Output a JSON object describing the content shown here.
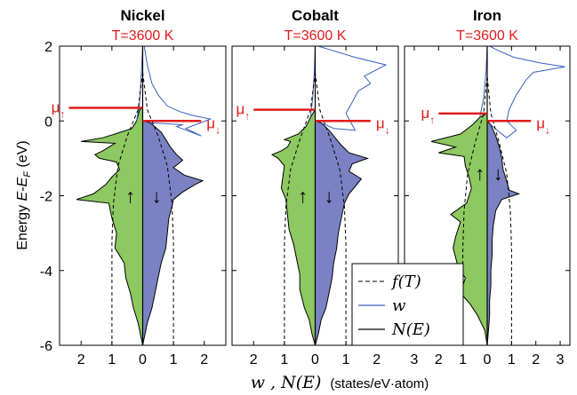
{
  "figure": {
    "ylabel_prefix": "Energy ",
    "ylabel_E": "E",
    "ylabel_dash": "-",
    "ylabel_EF": "E",
    "ylabel_F": "F",
    "ylabel_unit": " (eV)",
    "xlabel_math": "w , N(E)",
    "xlabel_unit": "(states/eV·atom)",
    "mu_symbol": "μ",
    "up_arrow": "↑",
    "down_arrow": "↓"
  },
  "legend": {
    "entries": [
      {
        "label": "f(T)",
        "style": "dashed",
        "color": "#000000"
      },
      {
        "label": "w",
        "style": "solid",
        "color": "#3b5fc0"
      },
      {
        "label": "N(E)",
        "style": "solid",
        "color": "#000000"
      }
    ]
  },
  "colors": {
    "spin_up_fill": "#8dc860",
    "spin_down_fill": "#7a82c4",
    "mu_line": "#e01b1b",
    "w_line": "#3b5fc0",
    "text_red": "#e01b1b"
  },
  "chart_data": [
    {
      "type": "area",
      "title": "Nickel",
      "subtitle": "T=3600 K",
      "ylim": [
        -6,
        2
      ],
      "yticks": [
        -6,
        -4,
        -2,
        0,
        2
      ],
      "xlim": [
        -2.7,
        2.7
      ],
      "xticks": [
        -2,
        -1,
        0,
        1,
        2
      ],
      "xtick_labels": [
        "2",
        "1",
        "0",
        "1",
        "2"
      ],
      "mu_up": 0.35,
      "mu_down": 0.0,
      "mu_up_range": [
        -2.4,
        0.0
      ],
      "mu_down_range": [
        0.0,
        1.9
      ],
      "f_dash": [
        [
          -1.0,
          -6.0
        ],
        [
          -1.0,
          -3.2
        ],
        [
          -0.95,
          -2.2
        ],
        [
          -0.8,
          -1.2
        ],
        [
          -0.5,
          -0.4
        ],
        [
          -0.15,
          0.3
        ],
        [
          0.0,
          1.3
        ]
      ],
      "f_dash_down": [
        [
          1.0,
          -6.0
        ],
        [
          1.0,
          -3.2
        ],
        [
          0.95,
          -2.2
        ],
        [
          0.8,
          -1.2
        ],
        [
          0.5,
          -0.4
        ],
        [
          0.15,
          0.3
        ],
        [
          0.0,
          1.3
        ]
      ],
      "n_up": [
        [
          0,
          -6
        ],
        [
          -0.05,
          -5.8
        ],
        [
          -0.15,
          -5.4
        ],
        [
          -0.3,
          -5.0
        ],
        [
          -0.4,
          -4.6
        ],
        [
          -0.55,
          -4.2
        ],
        [
          -0.6,
          -3.8
        ],
        [
          -0.9,
          -3.4
        ],
        [
          -0.85,
          -3.0
        ],
        [
          -1.0,
          -2.6
        ],
        [
          -1.05,
          -2.4
        ],
        [
          -1.1,
          -2.2
        ],
        [
          -2.15,
          -2.1
        ],
        [
          -1.6,
          -1.95
        ],
        [
          -1.2,
          -1.7
        ],
        [
          -1.0,
          -1.5
        ],
        [
          -0.75,
          -1.3
        ],
        [
          -0.85,
          -1.1
        ],
        [
          -1.4,
          -1.0
        ],
        [
          -1.55,
          -0.9
        ],
        [
          -1.3,
          -0.8
        ],
        [
          -1.1,
          -0.7
        ],
        [
          -0.9,
          -0.6
        ],
        [
          -2.0,
          -0.55
        ],
        [
          -1.3,
          -0.45
        ],
        [
          -0.9,
          -0.35
        ],
        [
          -0.35,
          -0.2
        ],
        [
          -0.2,
          0.0
        ],
        [
          -0.1,
          0.3
        ],
        [
          0,
          0.35
        ]
      ],
      "n_down": [
        [
          0,
          -6
        ],
        [
          0.05,
          -5.8
        ],
        [
          0.15,
          -5.4
        ],
        [
          0.3,
          -5.0
        ],
        [
          0.4,
          -4.6
        ],
        [
          0.5,
          -4.2
        ],
        [
          0.6,
          -3.8
        ],
        [
          0.75,
          -3.4
        ],
        [
          0.8,
          -3.0
        ],
        [
          0.85,
          -2.6
        ],
        [
          0.95,
          -2.3
        ],
        [
          1.0,
          -2.1
        ],
        [
          1.3,
          -1.9
        ],
        [
          1.7,
          -1.7
        ],
        [
          1.95,
          -1.6
        ],
        [
          1.35,
          -1.45
        ],
        [
          1.0,
          -1.25
        ],
        [
          1.3,
          -1.05
        ],
        [
          1.1,
          -0.9
        ],
        [
          0.9,
          -0.7
        ],
        [
          0.75,
          -0.5
        ],
        [
          0.6,
          -0.3
        ],
        [
          0.25,
          -0.05
        ],
        [
          0,
          0
        ]
      ],
      "w_up": [
        [
          -0.2,
          0.0
        ],
        [
          -0.1,
          0.5
        ],
        [
          -0.05,
          1.2
        ],
        [
          0.0,
          2.0
        ]
      ],
      "w_down": [
        [
          0.25,
          -0.05
        ],
        [
          1.3,
          -0.1
        ],
        [
          1.1,
          -0.15
        ],
        [
          1.9,
          -0.4
        ],
        [
          1.4,
          -0.2
        ],
        [
          2.2,
          0.05
        ],
        [
          1.6,
          0.15
        ],
        [
          1.2,
          0.25
        ],
        [
          0.8,
          0.4
        ],
        [
          0.5,
          0.7
        ],
        [
          0.3,
          1.0
        ],
        [
          0.15,
          1.5
        ],
        [
          0.05,
          2.0
        ]
      ]
    },
    {
      "type": "area",
      "title": "Cobalt",
      "subtitle": "T=3600 K",
      "ylim": [
        -6,
        2
      ],
      "yticks": [
        -6,
        -4,
        -2,
        0,
        2
      ],
      "xlim": [
        -2.7,
        2.7
      ],
      "xticks": [
        -2,
        -1,
        0,
        1,
        2
      ],
      "xtick_labels": [
        "2",
        "1",
        "0",
        "1",
        "2"
      ],
      "mu_up": 0.3,
      "mu_down": 0.0,
      "mu_up_range": [
        -2.0,
        0.0
      ],
      "mu_down_range": [
        0.0,
        1.8
      ],
      "f_dash": [
        [
          -1.0,
          -6.0
        ],
        [
          -1.0,
          -3.3
        ],
        [
          -0.95,
          -2.3
        ],
        [
          -0.8,
          -1.3
        ],
        [
          -0.5,
          -0.5
        ],
        [
          -0.15,
          0.3
        ],
        [
          0.0,
          1.3
        ]
      ],
      "f_dash_down": [
        [
          1.0,
          -6.0
        ],
        [
          1.0,
          -3.3
        ],
        [
          0.95,
          -2.3
        ],
        [
          0.8,
          -1.3
        ],
        [
          0.5,
          -0.5
        ],
        [
          0.15,
          0.3
        ],
        [
          0.0,
          1.3
        ]
      ],
      "n_up": [
        [
          0,
          -6
        ],
        [
          -0.1,
          -5.7
        ],
        [
          -0.2,
          -5.3
        ],
        [
          -0.35,
          -5.0
        ],
        [
          -0.5,
          -4.5
        ],
        [
          -0.5,
          -4.1
        ],
        [
          -0.6,
          -3.7
        ],
        [
          -0.7,
          -3.3
        ],
        [
          -0.85,
          -2.9
        ],
        [
          -0.9,
          -2.5
        ],
        [
          -0.95,
          -2.1
        ],
        [
          -1.1,
          -1.8
        ],
        [
          -1.05,
          -1.5
        ],
        [
          -1.0,
          -1.2
        ],
        [
          -1.2,
          -1.0
        ],
        [
          -1.4,
          -0.9
        ],
        [
          -1.1,
          -0.8
        ],
        [
          -0.9,
          -0.7
        ],
        [
          -0.8,
          -0.55
        ],
        [
          -1.0,
          -0.5
        ],
        [
          -0.55,
          -0.35
        ],
        [
          -0.3,
          -0.15
        ],
        [
          -0.15,
          0.1
        ],
        [
          0,
          0.3
        ]
      ],
      "n_down": [
        [
          0,
          -6
        ],
        [
          0.1,
          -5.7
        ],
        [
          0.2,
          -5.3
        ],
        [
          0.35,
          -5.0
        ],
        [
          0.45,
          -4.6
        ],
        [
          0.55,
          -4.2
        ],
        [
          0.6,
          -3.8
        ],
        [
          0.7,
          -3.4
        ],
        [
          0.75,
          -3.0
        ],
        [
          0.85,
          -2.6
        ],
        [
          0.95,
          -2.2
        ],
        [
          1.1,
          -1.95
        ],
        [
          1.3,
          -1.75
        ],
        [
          1.5,
          -1.55
        ],
        [
          1.1,
          -1.35
        ],
        [
          1.2,
          -1.15
        ],
        [
          1.7,
          -1.0
        ],
        [
          1.1,
          -0.85
        ],
        [
          0.85,
          -0.65
        ],
        [
          0.65,
          -0.45
        ],
        [
          0.45,
          -0.25
        ],
        [
          0.2,
          -0.05
        ],
        [
          0,
          0
        ]
      ],
      "w_up": [
        [
          -0.15,
          0.1
        ],
        [
          -0.08,
          0.6
        ],
        [
          -0.03,
          1.3
        ],
        [
          0.0,
          2.0
        ]
      ],
      "w_down": [
        [
          0.2,
          -0.05
        ],
        [
          0.6,
          -0.2
        ],
        [
          1.3,
          -0.25
        ],
        [
          1.0,
          0.2
        ],
        [
          1.2,
          0.5
        ],
        [
          1.4,
          0.8
        ],
        [
          1.8,
          1.0
        ],
        [
          1.6,
          1.2
        ],
        [
          2.3,
          1.5
        ],
        [
          1.3,
          1.7
        ],
        [
          0.5,
          1.9
        ],
        [
          0.1,
          2.0
        ]
      ]
    },
    {
      "type": "area",
      "title": "Iron",
      "subtitle": "T=3600 K",
      "ylim": [
        -6,
        2
      ],
      "yticks": [
        -6,
        -4,
        -2,
        0,
        2
      ],
      "xlim": [
        -3.4,
        3.4
      ],
      "xticks": [
        -3,
        -2,
        -1,
        0,
        1,
        2,
        3
      ],
      "xtick_labels": [
        "3",
        "2",
        "1",
        "0",
        "1",
        "2",
        "3"
      ],
      "mu_up": 0.2,
      "mu_down": 0.0,
      "mu_up_range": [
        -2.0,
        0.0
      ],
      "mu_down_range": [
        0.0,
        1.8
      ],
      "f_dash": [
        [
          -1.0,
          -6.0
        ],
        [
          -1.0,
          -3.4
        ],
        [
          -0.95,
          -2.4
        ],
        [
          -0.8,
          -1.4
        ],
        [
          -0.5,
          -0.6
        ],
        [
          -0.15,
          0.2
        ],
        [
          0.0,
          1.2
        ]
      ],
      "f_dash_down": [
        [
          1.0,
          -6.0
        ],
        [
          1.0,
          -3.4
        ],
        [
          0.95,
          -2.4
        ],
        [
          0.8,
          -1.4
        ],
        [
          0.5,
          -0.6
        ],
        [
          0.15,
          0.2
        ],
        [
          0.0,
          1.2
        ]
      ],
      "n_up": [
        [
          0,
          -6
        ],
        [
          -0.1,
          -5.6
        ],
        [
          -0.4,
          -5.2
        ],
        [
          -0.7,
          -4.9
        ],
        [
          -1.1,
          -4.6
        ],
        [
          -0.9,
          -4.2
        ],
        [
          -1.2,
          -3.9
        ],
        [
          -1.4,
          -3.4
        ],
        [
          -1.3,
          -3.1
        ],
        [
          -1.1,
          -2.7
        ],
        [
          -1.5,
          -2.5
        ],
        [
          -0.85,
          -2.2
        ],
        [
          -0.65,
          -1.8
        ],
        [
          -0.75,
          -1.5
        ],
        [
          -0.9,
          -1.2
        ],
        [
          -0.95,
          -0.95
        ],
        [
          -2.0,
          -0.85
        ],
        [
          -1.3,
          -0.7
        ],
        [
          -2.3,
          -0.55
        ],
        [
          -1.1,
          -0.35
        ],
        [
          -0.6,
          -0.1
        ],
        [
          -0.3,
          0.1
        ],
        [
          0,
          0.2
        ]
      ],
      "n_down": [
        [
          0,
          -6
        ],
        [
          0.05,
          -5.6
        ],
        [
          0.1,
          -5.2
        ],
        [
          0.1,
          -4.8
        ],
        [
          0.15,
          -4.4
        ],
        [
          0.15,
          -4.0
        ],
        [
          0.2,
          -3.6
        ],
        [
          0.2,
          -3.2
        ],
        [
          0.25,
          -2.8
        ],
        [
          0.35,
          -2.4
        ],
        [
          0.6,
          -2.1
        ],
        [
          1.3,
          -1.95
        ],
        [
          0.9,
          -1.85
        ],
        [
          0.8,
          -1.6
        ],
        [
          0.65,
          -1.3
        ],
        [
          0.6,
          -1.0
        ],
        [
          0.5,
          -0.7
        ],
        [
          0.35,
          -0.4
        ],
        [
          0.15,
          -0.1
        ],
        [
          0,
          0
        ]
      ],
      "w_up": [
        [
          -0.3,
          0.1
        ],
        [
          -0.15,
          0.6
        ],
        [
          -0.05,
          1.3
        ],
        [
          0.0,
          2.0
        ]
      ],
      "w_down": [
        [
          0.15,
          -0.1
        ],
        [
          0.5,
          -0.3
        ],
        [
          0.8,
          -0.45
        ],
        [
          1.2,
          -0.25
        ],
        [
          0.8,
          0.0
        ],
        [
          0.9,
          0.3
        ],
        [
          1.2,
          0.7
        ],
        [
          1.6,
          1.1
        ],
        [
          1.9,
          1.3
        ],
        [
          3.2,
          1.45
        ],
        [
          2.2,
          1.55
        ],
        [
          1.1,
          1.7
        ],
        [
          0.4,
          1.9
        ],
        [
          0.1,
          2.0
        ]
      ]
    }
  ]
}
